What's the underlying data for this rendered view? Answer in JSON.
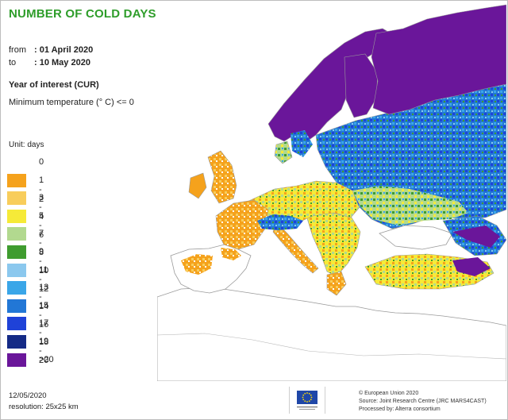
{
  "header": {
    "title": "NUMBER OF COLD DAYS"
  },
  "period": {
    "from_label": "from",
    "from_value": ": 01 April 2020",
    "to_label": "to",
    "to_value": ": 10 May 2020"
  },
  "year_label": "Year of interest (CUR)",
  "parameter": "Minimum temperature (° C) <= 0",
  "legend": {
    "unit": "Unit:  days",
    "items": [
      {
        "label": "0",
        "color": "#ffffff"
      },
      {
        "label": "1 - 2",
        "color": "#f5a21c"
      },
      {
        "label": "3 - 4",
        "color": "#f8cd5b"
      },
      {
        "label": "5 - 6",
        "color": "#f6ea38"
      },
      {
        "label": "7 - 8",
        "color": "#b2d98f"
      },
      {
        "label": "9 - 10",
        "color": "#3f9c2f"
      },
      {
        "label": "11 - 12",
        "color": "#8bc8ee"
      },
      {
        "label": "13 - 14",
        "color": "#3aa6e8"
      },
      {
        "label": "15 - 16",
        "color": "#2277d6"
      },
      {
        "label": "17 - 18",
        "color": "#1f42d8"
      },
      {
        "label": "19 - 20",
        "color": "#142a86"
      },
      {
        "label": ">20",
        "color": "#6a169a"
      }
    ]
  },
  "footer": {
    "date": "12/05/2020",
    "resolution": "resolution:  25x25 km",
    "credits": [
      "© European Union 2020",
      "Source: Joint Research Centre (JRC MARS4CAST)",
      "Processed by: Alterra consortium"
    ]
  },
  "colors": {
    "title": "#2e9d2a",
    "sea": "#ffffff",
    "border": "#9a9a9a",
    "eu_flag": "#1f47a8",
    "eu_star": "#ffdd00"
  }
}
